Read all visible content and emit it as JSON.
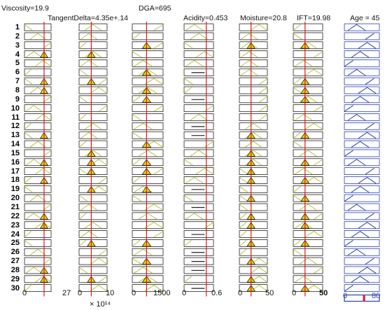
{
  "inputs": [
    {
      "id": "viscosity",
      "label": "Viscosity=19.9",
      "min_label": "0",
      "max_label": "27",
      "min": 0,
      "max": 27,
      "value": 19.9
    },
    {
      "id": "tangent_delta",
      "label": "TangentDelta=4.35e+.14",
      "min_label": "0",
      "max_label": "10",
      "min": 0,
      "max": 10,
      "value": 4.35,
      "scale_label": "× 10¹⁴"
    },
    {
      "id": "dga",
      "label": "DGA=695",
      "min_label": "0",
      "max_label": "1500",
      "min": 0,
      "max": 1500,
      "value": 695
    },
    {
      "id": "acidity",
      "label": "Acidity=0.453",
      "min_label": "0",
      "max_label": "0.6",
      "min": 0,
      "max": 0.6,
      "value": 0.453
    },
    {
      "id": "moisture",
      "label": "Moisture=20.8",
      "min_label": "0",
      "max_label": "50",
      "min": 0,
      "max": 50,
      "value": 20.8
    },
    {
      "id": "ift",
      "label": "IFT=19.98",
      "min_label": "0",
      "max_label": "50",
      "min": 0,
      "max": 50,
      "value": 19.98
    }
  ],
  "output": {
    "id": "age",
    "label": "Age = 45",
    "min_label": "0",
    "max_label": "80",
    "min": 0,
    "max": 80,
    "value": 45
  },
  "rules": [
    "1",
    "2",
    "3",
    "4",
    "5",
    "6",
    "7",
    "8",
    "9",
    "10",
    "11",
    "12",
    "13",
    "14",
    "15",
    "16",
    "17",
    "18",
    "19",
    "20",
    "21",
    "22",
    "23",
    "24",
    "25",
    "26",
    "27",
    "28",
    "29",
    "30"
  ],
  "colors": {
    "membership_line": "#b8c440",
    "firing_fill": "#f2d100",
    "firing_outline": "#222222",
    "input_marker": "#e01818",
    "output_line": "#2a3fb0",
    "output_bar": "#e01818",
    "box_border": "#222222"
  }
}
